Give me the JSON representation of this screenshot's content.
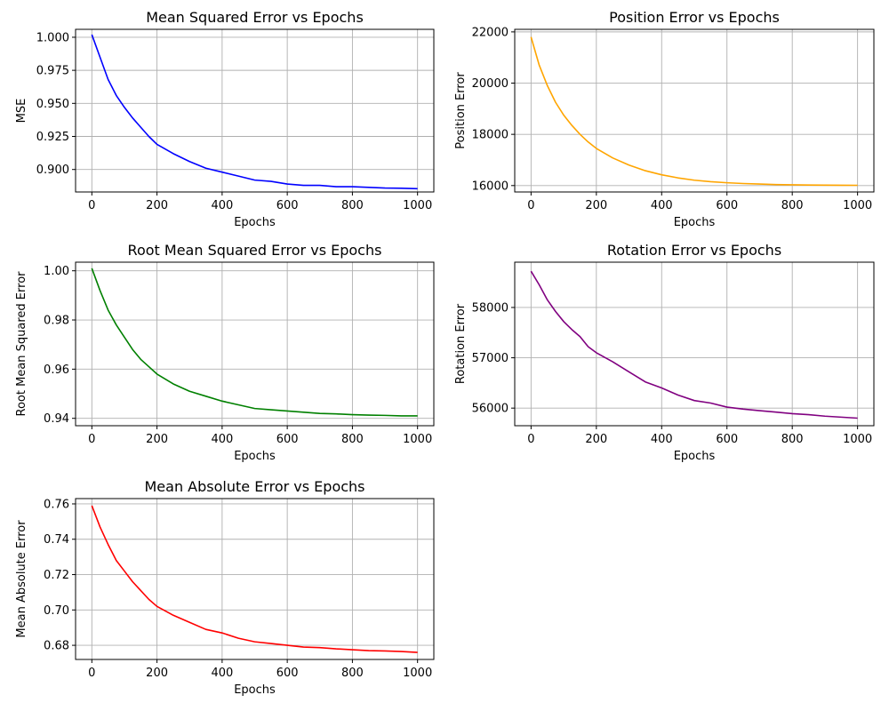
{
  "chart_data": [
    {
      "id": "mse",
      "type": "line",
      "title": "Mean Squared Error vs Epochs",
      "xlabel": "Epochs",
      "ylabel": "MSE",
      "xlim": [
        -50,
        1050
      ],
      "ylim": [
        0.883,
        1.006
      ],
      "xticks": [
        0,
        200,
        400,
        600,
        800,
        1000
      ],
      "xtick_labels": [
        "0",
        "200",
        "400",
        "600",
        "800",
        "1000"
      ],
      "yticks": [
        0.9,
        0.925,
        0.95,
        0.975,
        1.0
      ],
      "ytick_labels": [
        "0.900",
        "0.925",
        "0.950",
        "0.975",
        "1.000"
      ],
      "grid": true,
      "series": [
        {
          "color": "#0000ff",
          "x": [
            0,
            25,
            50,
            75,
            100,
            125,
            150,
            175,
            200,
            250,
            300,
            350,
            400,
            450,
            500,
            550,
            600,
            650,
            700,
            750,
            800,
            850,
            900,
            950,
            1000
          ],
          "y": [
            1.002,
            0.985,
            0.968,
            0.956,
            0.947,
            0.939,
            0.932,
            0.925,
            0.919,
            0.912,
            0.906,
            0.901,
            0.898,
            0.895,
            0.892,
            0.891,
            0.889,
            0.888,
            0.888,
            0.887,
            0.887,
            0.8865,
            0.886,
            0.8858,
            0.8855
          ]
        }
      ]
    },
    {
      "id": "position",
      "type": "line",
      "title": "Position Error vs Epochs",
      "xlabel": "Epochs",
      "ylabel": "Position Error",
      "xlim": [
        -50,
        1050
      ],
      "ylim": [
        15750,
        22100
      ],
      "xticks": [
        0,
        200,
        400,
        600,
        800,
        1000
      ],
      "xtick_labels": [
        "0",
        "200",
        "400",
        "600",
        "800",
        "1000"
      ],
      "yticks": [
        16000,
        18000,
        20000,
        22000
      ],
      "ytick_labels": [
        "16000",
        "18000",
        "20000",
        "22000"
      ],
      "grid": true,
      "series": [
        {
          "color": "#ffa500",
          "x": [
            0,
            25,
            50,
            75,
            100,
            125,
            150,
            175,
            200,
            250,
            300,
            350,
            400,
            450,
            500,
            550,
            600,
            650,
            700,
            750,
            800,
            850,
            900,
            950,
            1000
          ],
          "y": [
            21800,
            20700,
            19900,
            19250,
            18750,
            18350,
            18000,
            17700,
            17450,
            17080,
            16800,
            16580,
            16420,
            16300,
            16210,
            16150,
            16110,
            16080,
            16060,
            16040,
            16030,
            16020,
            16015,
            16012,
            16010
          ]
        }
      ]
    },
    {
      "id": "rmse",
      "type": "line",
      "title": "Root Mean Squared Error vs Epochs",
      "xlabel": "Epochs",
      "ylabel": "Root Mean Squared Error",
      "xlim": [
        -50,
        1050
      ],
      "ylim": [
        0.937,
        1.0035
      ],
      "xticks": [
        0,
        200,
        400,
        600,
        800,
        1000
      ],
      "xtick_labels": [
        "0",
        "200",
        "400",
        "600",
        "800",
        "1000"
      ],
      "yticks": [
        0.94,
        0.96,
        0.98,
        1.0
      ],
      "ytick_labels": [
        "0.94",
        "0.96",
        "0.98",
        "1.00"
      ],
      "grid": true,
      "series": [
        {
          "color": "#008000",
          "x": [
            0,
            25,
            50,
            75,
            100,
            125,
            150,
            175,
            200,
            250,
            300,
            350,
            400,
            450,
            500,
            550,
            600,
            650,
            700,
            750,
            800,
            850,
            900,
            950,
            1000
          ],
          "y": [
            1.001,
            0.992,
            0.984,
            0.978,
            0.973,
            0.968,
            0.964,
            0.961,
            0.958,
            0.954,
            0.951,
            0.949,
            0.947,
            0.9455,
            0.944,
            0.9435,
            0.943,
            0.9425,
            0.942,
            0.9418,
            0.9415,
            0.9413,
            0.9412,
            0.941,
            0.941
          ]
        }
      ]
    },
    {
      "id": "rotation",
      "type": "line",
      "title": "Rotation Error vs Epochs",
      "xlabel": "Epochs",
      "ylabel": "Rotation Error",
      "xlim": [
        -50,
        1050
      ],
      "ylim": [
        55650,
        58900
      ],
      "xticks": [
        0,
        200,
        400,
        600,
        800,
        1000
      ],
      "xtick_labels": [
        "0",
        "200",
        "400",
        "600",
        "800",
        "1000"
      ],
      "yticks": [
        56000,
        57000,
        58000
      ],
      "ytick_labels": [
        "56000",
        "57000",
        "58000"
      ],
      "grid": true,
      "series": [
        {
          "color": "#800080",
          "x": [
            0,
            25,
            50,
            75,
            100,
            125,
            150,
            175,
            200,
            250,
            300,
            350,
            400,
            450,
            500,
            550,
            600,
            650,
            700,
            750,
            800,
            850,
            900,
            950,
            1000
          ],
          "y": [
            58720,
            58450,
            58150,
            57920,
            57720,
            57560,
            57420,
            57220,
            57100,
            56920,
            56720,
            56520,
            56400,
            56260,
            56150,
            56100,
            56020,
            55980,
            55950,
            55920,
            55890,
            55870,
            55840,
            55820,
            55800
          ]
        }
      ]
    },
    {
      "id": "mae",
      "type": "line",
      "title": "Mean Absolute Error vs Epochs",
      "xlabel": "Epochs",
      "ylabel": "Mean Absolute Error",
      "xlim": [
        -50,
        1050
      ],
      "ylim": [
        0.672,
        0.763
      ],
      "xticks": [
        0,
        200,
        400,
        600,
        800,
        1000
      ],
      "xtick_labels": [
        "0",
        "200",
        "400",
        "600",
        "800",
        "1000"
      ],
      "yticks": [
        0.68,
        0.7,
        0.72,
        0.74,
        0.76
      ],
      "ytick_labels": [
        "0.68",
        "0.70",
        "0.72",
        "0.74",
        "0.76"
      ],
      "grid": true,
      "series": [
        {
          "color": "#ff0000",
          "x": [
            0,
            25,
            50,
            75,
            100,
            125,
            150,
            175,
            200,
            250,
            300,
            350,
            400,
            450,
            500,
            550,
            600,
            650,
            700,
            750,
            800,
            850,
            900,
            950,
            1000
          ],
          "y": [
            0.759,
            0.747,
            0.737,
            0.728,
            0.722,
            0.716,
            0.711,
            0.706,
            0.702,
            0.697,
            0.693,
            0.689,
            0.687,
            0.684,
            0.682,
            0.681,
            0.68,
            0.679,
            0.6787,
            0.678,
            0.6775,
            0.677,
            0.6768,
            0.6765,
            0.676
          ]
        }
      ]
    }
  ]
}
